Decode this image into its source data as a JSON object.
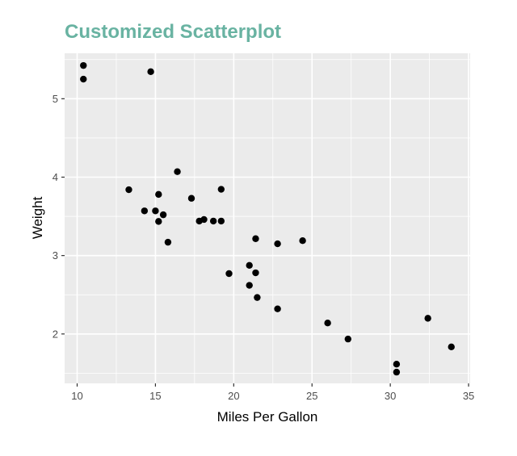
{
  "chart_data": {
    "type": "scatter",
    "title": "Customized Scatterplot",
    "title_color": "#69b3a2",
    "xlabel": "Miles Per Gallon",
    "ylabel": "Weight",
    "xlim": [
      9.2,
      35.1
    ],
    "ylim": [
      1.37,
      5.58
    ],
    "x_ticks": [
      10,
      15,
      20,
      25,
      30,
      35
    ],
    "y_ticks": [
      2,
      3,
      4,
      5
    ],
    "grid": true,
    "panel_background": "#ebebeb",
    "point_color": "#000000",
    "legend": null,
    "points": [
      {
        "x": 21.0,
        "y": 2.62
      },
      {
        "x": 21.0,
        "y": 2.875
      },
      {
        "x": 22.8,
        "y": 2.32
      },
      {
        "x": 21.4,
        "y": 3.215
      },
      {
        "x": 18.7,
        "y": 3.44
      },
      {
        "x": 18.1,
        "y": 3.46
      },
      {
        "x": 14.3,
        "y": 3.57
      },
      {
        "x": 24.4,
        "y": 3.19
      },
      {
        "x": 22.8,
        "y": 3.15
      },
      {
        "x": 19.2,
        "y": 3.44
      },
      {
        "x": 17.8,
        "y": 3.44
      },
      {
        "x": 16.4,
        "y": 4.07
      },
      {
        "x": 17.3,
        "y": 3.73
      },
      {
        "x": 15.2,
        "y": 3.78
      },
      {
        "x": 10.4,
        "y": 5.25
      },
      {
        "x": 10.4,
        "y": 5.424
      },
      {
        "x": 14.7,
        "y": 5.345
      },
      {
        "x": 32.4,
        "y": 2.2
      },
      {
        "x": 30.4,
        "y": 1.615
      },
      {
        "x": 33.9,
        "y": 1.835
      },
      {
        "x": 21.5,
        "y": 2.465
      },
      {
        "x": 15.5,
        "y": 3.52
      },
      {
        "x": 15.2,
        "y": 3.435
      },
      {
        "x": 13.3,
        "y": 3.84
      },
      {
        "x": 19.2,
        "y": 3.845
      },
      {
        "x": 27.3,
        "y": 1.935
      },
      {
        "x": 26.0,
        "y": 2.14
      },
      {
        "x": 30.4,
        "y": 1.513
      },
      {
        "x": 15.8,
        "y": 3.17
      },
      {
        "x": 19.7,
        "y": 2.77
      },
      {
        "x": 15.0,
        "y": 3.57
      },
      {
        "x": 21.4,
        "y": 2.78
      }
    ]
  }
}
